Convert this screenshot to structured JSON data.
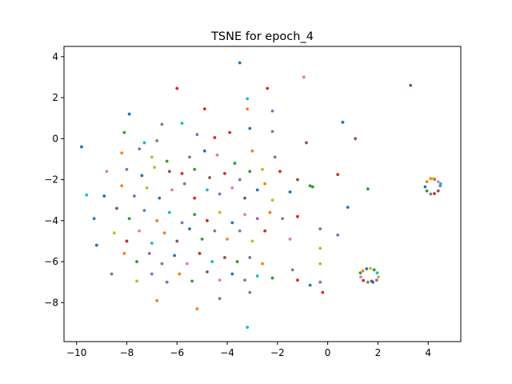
{
  "chart_data": {
    "type": "scatter",
    "title": "TSNE for epoch_4",
    "xlabel": "",
    "ylabel": "",
    "xlim": [
      -10.5,
      5.3
    ],
    "ylim": [
      -9.9,
      4.5
    ],
    "x_ticks": [
      -10,
      -8,
      -6,
      -4,
      -2,
      0,
      2,
      4
    ],
    "y_ticks": [
      -8,
      -6,
      -4,
      -2,
      0,
      2,
      4
    ],
    "x_tick_labels": [
      "−10",
      "−8",
      "−6",
      "−4",
      "−2",
      "0",
      "2",
      "4"
    ],
    "y_tick_labels": [
      "−8",
      "−6",
      "−4",
      "−2",
      "0",
      "2",
      "4"
    ],
    "grid": false,
    "legend": "none",
    "palette": [
      "#1f77b4",
      "#ff7f0e",
      "#2ca02c",
      "#d62728",
      "#9467bd",
      "#8c564b",
      "#e377c2",
      "#7f7f7f",
      "#bcbd22",
      "#17becf"
    ],
    "points": [
      [
        -9.8,
        -0.4,
        0
      ],
      [
        -3.5,
        3.7,
        0
      ],
      [
        -2.4,
        2.45,
        3
      ],
      [
        -0.95,
        3.0,
        6
      ],
      [
        3.3,
        2.6,
        5
      ],
      [
        -7.9,
        1.2,
        0
      ],
      [
        -4.9,
        1.45,
        3
      ],
      [
        -3.2,
        1.95,
        9
      ],
      [
        -3.2,
        1.45,
        1
      ],
      [
        -2.2,
        1.35,
        4
      ],
      [
        -6.0,
        2.45,
        3
      ],
      [
        0.6,
        0.8,
        0
      ],
      [
        -0.85,
        -0.2,
        5
      ],
      [
        1.1,
        0.0,
        5
      ],
      [
        -8.1,
        0.3,
        2
      ],
      [
        -7.3,
        -0.2,
        9
      ],
      [
        -6.6,
        0.7,
        7
      ],
      [
        -6.8,
        -0.1,
        7
      ],
      [
        -5.8,
        0.75,
        9
      ],
      [
        -5.2,
        0.2,
        4
      ],
      [
        -4.5,
        0.05,
        3
      ],
      [
        -3.9,
        0.3,
        3
      ],
      [
        -3.1,
        0.5,
        0
      ],
      [
        -2.2,
        0.35,
        7
      ],
      [
        -7.5,
        -0.5,
        4
      ],
      [
        -8.2,
        -0.7,
        1
      ],
      [
        -7.0,
        -0.9,
        8
      ],
      [
        -6.4,
        -1.1,
        2
      ],
      [
        -5.5,
        -0.9,
        7
      ],
      [
        -4.9,
        -0.6,
        0
      ],
      [
        -4.4,
        -0.8,
        6
      ],
      [
        -3.7,
        -1.2,
        2
      ],
      [
        -3.0,
        -0.6,
        1
      ],
      [
        -2.6,
        -1.5,
        8
      ],
      [
        -2.1,
        -0.9,
        7
      ],
      [
        -8.8,
        -1.6,
        6
      ],
      [
        -8.0,
        -1.5,
        4
      ],
      [
        -7.4,
        -1.8,
        0
      ],
      [
        -6.9,
        -1.4,
        8
      ],
      [
        -6.3,
        -1.6,
        5
      ],
      [
        -5.8,
        -1.7,
        3
      ],
      [
        -5.3,
        -1.5,
        2
      ],
      [
        -4.7,
        -1.9,
        5
      ],
      [
        -4.1,
        -1.7,
        3
      ],
      [
        -3.5,
        -2.0,
        4
      ],
      [
        -3.1,
        -1.6,
        2
      ],
      [
        -2.5,
        -2.2,
        1
      ],
      [
        -1.9,
        -1.6,
        3
      ],
      [
        -1.2,
        -2.0,
        5
      ],
      [
        -0.7,
        -2.3,
        2
      ],
      [
        0.4,
        -1.75,
        3
      ],
      [
        1.6,
        -2.45,
        2
      ],
      [
        -9.6,
        -2.75,
        9
      ],
      [
        -8.9,
        -2.8,
        0
      ],
      [
        -8.2,
        -2.3,
        1
      ],
      [
        -7.7,
        -2.8,
        4
      ],
      [
        -7.2,
        -2.4,
        8
      ],
      [
        -6.7,
        -2.9,
        0
      ],
      [
        -6.2,
        -2.5,
        6
      ],
      [
        -5.7,
        -2.2,
        7
      ],
      [
        -5.3,
        -2.9,
        3
      ],
      [
        -4.8,
        -2.5,
        9
      ],
      [
        -4.3,
        -2.7,
        4
      ],
      [
        -3.8,
        -2.4,
        6
      ],
      [
        -3.3,
        -2.9,
        5
      ],
      [
        -2.8,
        -2.5,
        0
      ],
      [
        -2.2,
        -3.0,
        8
      ],
      [
        -1.5,
        -2.6,
        0
      ],
      [
        -0.6,
        -2.35,
        2
      ],
      [
        0.8,
        -3.35,
        0
      ],
      [
        -9.3,
        -3.9,
        0
      ],
      [
        -8.4,
        -3.4,
        5
      ],
      [
        -7.9,
        -3.9,
        2
      ],
      [
        -7.3,
        -3.5,
        7
      ],
      [
        -6.8,
        -4.0,
        1
      ],
      [
        -6.3,
        -3.6,
        9
      ],
      [
        -5.8,
        -4.1,
        4
      ],
      [
        -5.3,
        -3.7,
        2
      ],
      [
        -4.8,
        -4.0,
        3
      ],
      [
        -4.3,
        -3.6,
        8
      ],
      [
        -3.8,
        -4.1,
        0
      ],
      [
        -3.3,
        -3.7,
        6
      ],
      [
        -2.8,
        -3.9,
        4
      ],
      [
        -2.3,
        -3.6,
        1
      ],
      [
        -1.8,
        -3.9,
        7
      ],
      [
        -1.2,
        -3.8,
        3
      ],
      [
        -0.3,
        -4.4,
        7
      ],
      [
        0.4,
        -4.7,
        4
      ],
      [
        -9.2,
        -5.2,
        0
      ],
      [
        -8.5,
        -4.6,
        8
      ],
      [
        -8.0,
        -5.0,
        3
      ],
      [
        -7.5,
        -4.5,
        6
      ],
      [
        -7.0,
        -5.1,
        9
      ],
      [
        -6.5,
        -4.6,
        1
      ],
      [
        -6.0,
        -5.0,
        5
      ],
      [
        -5.5,
        -4.4,
        0
      ],
      [
        -5.0,
        -4.9,
        2
      ],
      [
        -4.5,
        -4.5,
        7
      ],
      [
        -4.0,
        -4.9,
        1
      ],
      [
        -3.5,
        -4.5,
        4
      ],
      [
        -3.0,
        -5.0,
        8
      ],
      [
        -2.5,
        -4.5,
        3
      ],
      [
        -1.5,
        -4.9,
        6
      ],
      [
        -0.3,
        -5.35,
        8
      ],
      [
        -8.6,
        -6.6,
        7
      ],
      [
        -8.1,
        -5.6,
        1
      ],
      [
        -7.6,
        -6.0,
        2
      ],
      [
        -7.1,
        -5.6,
        4
      ],
      [
        -6.6,
        -6.1,
        7
      ],
      [
        -6.1,
        -5.7,
        0
      ],
      [
        -5.6,
        -6.1,
        6
      ],
      [
        -5.1,
        -5.6,
        3
      ],
      [
        -4.6,
        -6.0,
        9
      ],
      [
        -4.1,
        -5.8,
        5
      ],
      [
        -3.6,
        -6.0,
        2
      ],
      [
        -3.1,
        -5.8,
        4
      ],
      [
        -2.6,
        -6.1,
        1
      ],
      [
        -1.4,
        -6.4,
        7
      ],
      [
        -0.3,
        -6.1,
        8
      ],
      [
        -7.6,
        -6.95,
        8
      ],
      [
        -7.0,
        -6.6,
        4
      ],
      [
        -6.4,
        -7.0,
        4
      ],
      [
        -5.9,
        -6.6,
        1
      ],
      [
        -5.4,
        -6.95,
        2
      ],
      [
        -4.8,
        -6.5,
        5
      ],
      [
        -4.3,
        -6.9,
        6
      ],
      [
        -3.8,
        -6.6,
        0
      ],
      [
        -3.3,
        -6.9,
        7
      ],
      [
        -2.8,
        -6.7,
        9
      ],
      [
        -2.2,
        -6.8,
        2
      ],
      [
        -1.2,
        -6.9,
        3
      ],
      [
        -0.7,
        -7.15,
        0
      ],
      [
        -0.3,
        -7.0,
        4
      ],
      [
        -0.2,
        -7.5,
        3
      ],
      [
        -6.8,
        -7.9,
        1
      ],
      [
        -5.2,
        -8.3,
        1
      ],
      [
        -4.3,
        -7.8,
        4
      ],
      [
        -3.1,
        -7.5,
        4
      ],
      [
        -3.2,
        -9.2,
        9
      ],
      [
        4.1,
        -1.95,
        1
      ],
      [
        4.25,
        -1.98,
        3
      ],
      [
        4.4,
        -2.1,
        6
      ],
      [
        4.48,
        -2.3,
        4
      ],
      [
        4.4,
        -2.55,
        5
      ],
      [
        4.25,
        -2.68,
        3
      ],
      [
        4.1,
        -2.7,
        7
      ],
      [
        3.95,
        -2.55,
        2
      ],
      [
        3.88,
        -2.35,
        0
      ],
      [
        3.95,
        -2.1,
        1
      ],
      [
        4.2,
        -1.96,
        8
      ],
      [
        4.5,
        -2.2,
        9
      ],
      [
        1.4,
        -6.45,
        1
      ],
      [
        1.55,
        -6.35,
        0
      ],
      [
        1.7,
        -6.33,
        8
      ],
      [
        1.85,
        -6.4,
        2
      ],
      [
        1.97,
        -6.55,
        9
      ],
      [
        2.02,
        -6.75,
        8
      ],
      [
        1.95,
        -6.9,
        4
      ],
      [
        1.8,
        -7.0,
        0
      ],
      [
        1.6,
        -7.0,
        7
      ],
      [
        1.42,
        -6.92,
        3
      ],
      [
        1.32,
        -6.75,
        6
      ],
      [
        1.3,
        -6.55,
        2
      ],
      [
        1.75,
        -6.95,
        5
      ]
    ]
  }
}
